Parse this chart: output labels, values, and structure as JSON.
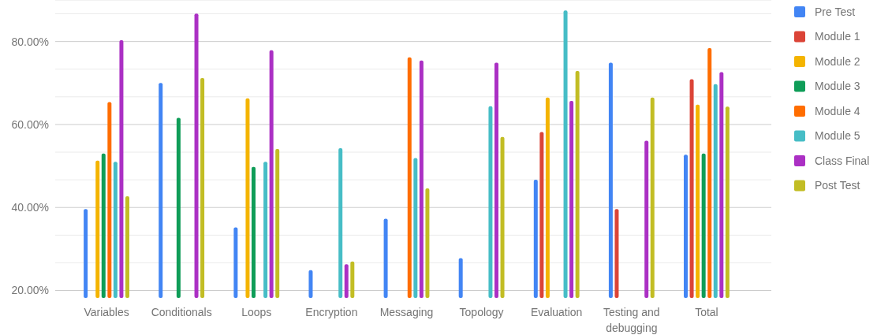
{
  "chart_data": {
    "type": "bar",
    "categories": [
      "Variables",
      "Conditionals",
      "Loops",
      "Encryption",
      "Messaging",
      "Topology",
      "Evaluation",
      "Testing and debugging",
      "Total"
    ],
    "series": [
      {
        "name": "Pre Test",
        "color": "#4285f4",
        "values": [
          39.6,
          70.0,
          35.2,
          24.9,
          37.3,
          27.8,
          46.7,
          74.9,
          52.7
        ]
      },
      {
        "name": "Module 1",
        "color": "#db4437",
        "values": [
          null,
          null,
          null,
          null,
          null,
          null,
          58.2,
          39.6,
          70.9
        ]
      },
      {
        "name": "Module 2",
        "color": "#f4b400",
        "values": [
          51.3,
          null,
          66.3,
          null,
          null,
          null,
          66.5,
          null,
          64.8
        ]
      },
      {
        "name": "Module 3",
        "color": "#0f9d58",
        "values": [
          53.0,
          61.6,
          49.8,
          null,
          null,
          null,
          null,
          null,
          53.0
        ]
      },
      {
        "name": "Module 4",
        "color": "#ff6d00",
        "values": [
          65.4,
          null,
          null,
          null,
          76.2,
          null,
          null,
          null,
          78.4
        ]
      },
      {
        "name": "Module 5",
        "color": "#46bdc6",
        "values": [
          51.0,
          null,
          51.0,
          54.3,
          51.9,
          64.4,
          87.5,
          null,
          69.7
        ]
      },
      {
        "name": "Class Final",
        "color": "#ab30c4",
        "values": [
          80.3,
          86.7,
          77.9,
          26.3,
          75.4,
          74.9,
          65.7,
          56.1,
          72.6
        ]
      },
      {
        "name": "Post Test",
        "color": "#c2bd24",
        "values": [
          42.7,
          71.2,
          54.1,
          27.0,
          44.6,
          57.0,
          72.9,
          66.5,
          64.3
        ]
      }
    ],
    "ylim": [
      18.2,
      90
    ],
    "yticks": [
      {
        "value": 20,
        "label": "20.00%"
      },
      {
        "value": 26.67,
        "label": null
      },
      {
        "value": 33.33,
        "label": null
      },
      {
        "value": 40,
        "label": "40.00%"
      },
      {
        "value": 46.67,
        "label": null
      },
      {
        "value": 53.33,
        "label": null
      },
      {
        "value": 60,
        "label": "60.00%"
      },
      {
        "value": 66.67,
        "label": null
      },
      {
        "value": 73.33,
        "label": null
      },
      {
        "value": 80,
        "label": "80.00%"
      },
      {
        "value": 86.67,
        "label": null
      }
    ],
    "grid": "y",
    "legend": "right"
  }
}
